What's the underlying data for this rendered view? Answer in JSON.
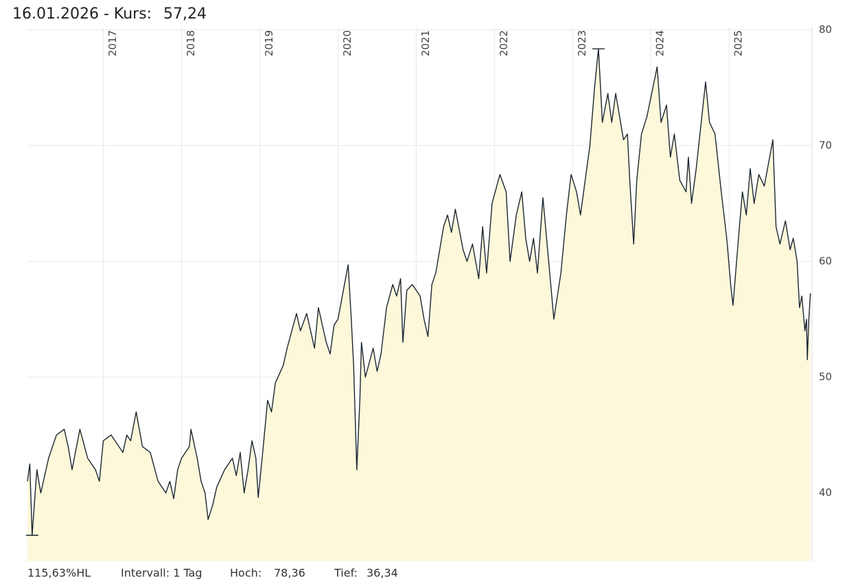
{
  "chart_data": {
    "type": "line",
    "title": "16.01.2026  - Kurs:",
    "last": {
      "value": 57.24,
      "label": "57,24"
    },
    "footer": {
      "range": "115,63%HL",
      "interval": "Intervall: 1 Tag",
      "high_label": "Hoch:",
      "low_label": "Tief:"
    },
    "high": {
      "value": 78.36,
      "label": "78,36"
    },
    "low": {
      "value": 36.34,
      "label": "36,34"
    },
    "color": "#1b2631",
    "fill": "#fdf8da",
    "grid": true,
    "xlim": [
      2016.03,
      2026.06
    ],
    "ylim": [
      34.1,
      80.2
    ],
    "xticks": [
      2017,
      2018,
      2019,
      2020,
      2021,
      2022,
      2023,
      2024,
      2025
    ],
    "yticks": [
      40,
      50,
      60,
      70,
      80
    ],
    "x": [
      2016.03,
      2016.06,
      2016.09,
      2016.15,
      2016.2,
      2016.3,
      2016.4,
      2016.5,
      2016.55,
      2016.6,
      2016.7,
      2016.8,
      2016.9,
      2016.95,
      2017.0,
      2017.1,
      2017.2,
      2017.25,
      2017.3,
      2017.35,
      2017.42,
      2017.5,
      2017.6,
      2017.7,
      2017.8,
      2017.85,
      2017.9,
      2017.95,
      2018.0,
      2018.05,
      2018.1,
      2018.12,
      2018.2,
      2018.25,
      2018.3,
      2018.34,
      2018.4,
      2018.45,
      2018.55,
      2018.65,
      2018.7,
      2018.75,
      2018.8,
      2018.85,
      2018.9,
      2018.95,
      2018.98,
      2019.03,
      2019.1,
      2019.15,
      2019.2,
      2019.3,
      2019.35,
      2019.47,
      2019.52,
      2019.6,
      2019.7,
      2019.75,
      2019.85,
      2019.9,
      2019.95,
      2020.0,
      2020.13,
      2020.17,
      2020.2,
      2020.24,
      2020.28,
      2020.3,
      2020.35,
      2020.45,
      2020.5,
      2020.55,
      2020.62,
      2020.7,
      2020.75,
      2020.8,
      2020.83,
      2020.88,
      2020.95,
      2021.05,
      2021.1,
      2021.15,
      2021.2,
      2021.25,
      2021.3,
      2021.35,
      2021.4,
      2021.45,
      2021.5,
      2021.6,
      2021.65,
      2021.72,
      2021.8,
      2021.85,
      2021.9,
      2021.97,
      2022.07,
      2022.15,
      2022.2,
      2022.28,
      2022.35,
      2022.4,
      2022.45,
      2022.5,
      2022.55,
      2022.62,
      2022.68,
      2022.72,
      2022.76,
      2022.85,
      2022.92,
      2022.98,
      2023.05,
      2023.1,
      2023.15,
      2023.22,
      2023.28,
      2023.33,
      2023.38,
      2023.45,
      2023.5,
      2023.55,
      2023.65,
      2023.7,
      2023.73,
      2023.78,
      2023.82,
      2023.88,
      2023.95,
      2024.08,
      2024.13,
      2024.2,
      2024.25,
      2024.3,
      2024.37,
      2024.45,
      2024.48,
      2024.52,
      2024.58,
      2024.7,
      2024.75,
      2024.82,
      2024.9,
      2024.97,
      2025.02,
      2025.05,
      2025.12,
      2025.17,
      2025.22,
      2025.27,
      2025.32,
      2025.38,
      2025.45,
      2025.56,
      2025.6,
      2025.65,
      2025.72,
      2025.78,
      2025.82,
      2025.87,
      2025.9,
      2025.93,
      2025.97,
      2025.99,
      2026.0,
      2026.02,
      2026.04
    ],
    "values": [
      41,
      42.5,
      36.34,
      42,
      40,
      43,
      45,
      45.5,
      44,
      42,
      45.5,
      43,
      42,
      41,
      44.5,
      45,
      44,
      43.5,
      45,
      44.5,
      47,
      44,
      43.5,
      41,
      40,
      41,
      39.5,
      42,
      43,
      43.5,
      44,
      45.5,
      43,
      41,
      40,
      37.7,
      39,
      40.5,
      42,
      43,
      41.5,
      43.5,
      40,
      42,
      44.5,
      43,
      39.6,
      43,
      48,
      47,
      49.5,
      51,
      52.5,
      55.5,
      54,
      55.5,
      52.5,
      56,
      53,
      52,
      54.5,
      55,
      59.7,
      55,
      51,
      42,
      48,
      53,
      50,
      52.5,
      50.5,
      52,
      56,
      58,
      57,
      58.5,
      53,
      57.5,
      58,
      57,
      55,
      53.5,
      58,
      59,
      61,
      63,
      64,
      62.5,
      64.5,
      61,
      60,
      61.5,
      58.5,
      63,
      59,
      65,
      67.5,
      66,
      60,
      64,
      66,
      62,
      60,
      62,
      59,
      65.5,
      61,
      58,
      55,
      59,
      64,
      67.5,
      66,
      64,
      66.5,
      70,
      75,
      78.36,
      72,
      74.5,
      72,
      74.5,
      70.5,
      71,
      67,
      61.5,
      67,
      71,
      72.5,
      76.8,
      72,
      73.5,
      69,
      71,
      67,
      66,
      69,
      65,
      68,
      75.5,
      72,
      71,
      66,
      62,
      58,
      56.2,
      62,
      66,
      64,
      68,
      65,
      67.5,
      66.5,
      70.5,
      63,
      61.5,
      63.5,
      61,
      62,
      60,
      56,
      57,
      54,
      55,
      51.5,
      55,
      57.24
    ]
  }
}
